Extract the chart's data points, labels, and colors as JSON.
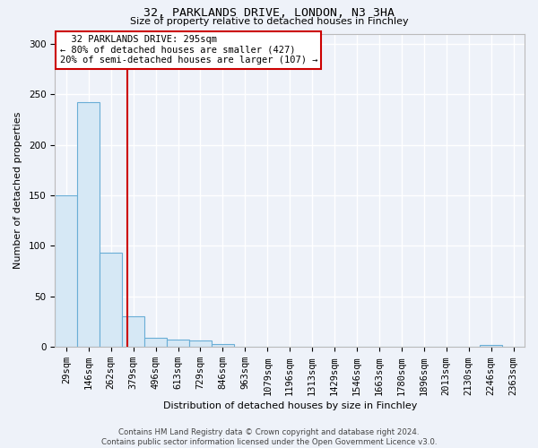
{
  "title1": "32, PARKLANDS DRIVE, LONDON, N3 3HA",
  "title2": "Size of property relative to detached houses in Finchley",
  "xlabel": "Distribution of detached houses by size in Finchley",
  "ylabel": "Number of detached properties",
  "categories": [
    "29sqm",
    "146sqm",
    "262sqm",
    "379sqm",
    "496sqm",
    "613sqm",
    "729sqm",
    "846sqm",
    "963sqm",
    "1079sqm",
    "1196sqm",
    "1313sqm",
    "1429sqm",
    "1546sqm",
    "1663sqm",
    "1780sqm",
    "1896sqm",
    "2013sqm",
    "2130sqm",
    "2246sqm",
    "2363sqm"
  ],
  "values": [
    150,
    242,
    93,
    30,
    9,
    7,
    6,
    3,
    0,
    0,
    0,
    0,
    0,
    0,
    0,
    0,
    0,
    0,
    0,
    2,
    0
  ],
  "bar_color": "#d6e8f5",
  "bar_edge_color": "#6aaed6",
  "red_line_x": 2.72,
  "annotation_text": "  32 PARKLANDS DRIVE: 295sqm\n← 80% of detached houses are smaller (427)\n20% of semi-detached houses are larger (107) →",
  "annotation_box_color": "white",
  "annotation_box_edge_color": "#cc0000",
  "vline_color": "#cc0000",
  "ylim": [
    0,
    310
  ],
  "yticks": [
    0,
    50,
    100,
    150,
    200,
    250,
    300
  ],
  "footnote": "Contains HM Land Registry data © Crown copyright and database right 2024.\nContains public sector information licensed under the Open Government Licence v3.0.",
  "bg_color": "#eef2f9",
  "grid_color": "white",
  "title1_fontsize": 9.5,
  "title2_fontsize": 8.0,
  "xlabel_fontsize": 8.0,
  "ylabel_fontsize": 8.0,
  "tick_fontsize": 7.5,
  "annot_fontsize": 7.5
}
